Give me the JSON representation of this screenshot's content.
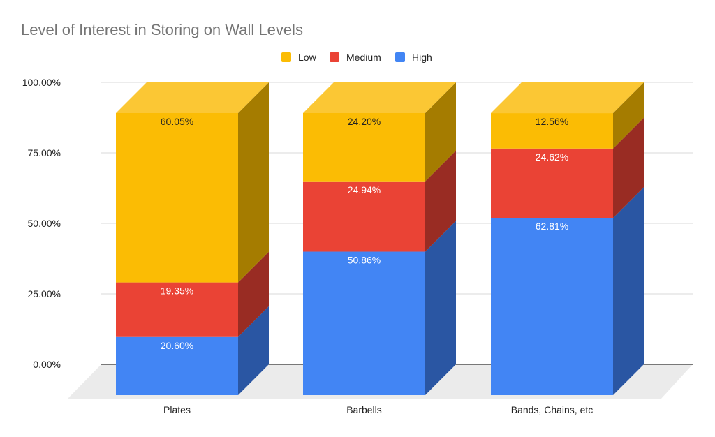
{
  "chart_data": {
    "type": "bar",
    "stacked": true,
    "three_d": true,
    "title": "Level of Interest in Storing on Wall Levels",
    "categories": [
      "Plates",
      "Barbells",
      "Bands, Chains, etc"
    ],
    "series": [
      {
        "key": "high",
        "name": "High",
        "values": [
          20.6,
          50.86,
          62.81
        ],
        "labels": [
          "20.60%",
          "50.86%",
          "62.81%"
        ]
      },
      {
        "key": "medium",
        "name": "Medium",
        "values": [
          19.35,
          24.94,
          24.62
        ],
        "labels": [
          "19.35%",
          "24.94%",
          "24.62%"
        ]
      },
      {
        "key": "low",
        "name": "Low",
        "values": [
          60.05,
          24.2,
          12.56
        ],
        "labels": [
          "60.05%",
          "24.20%",
          "12.56%"
        ]
      }
    ],
    "legend": [
      "Low",
      "Medium",
      "High"
    ],
    "legend_position": "top",
    "y_ticks": [
      "0.00%",
      "25.00%",
      "50.00%",
      "75.00%",
      "100.00%"
    ],
    "ylim": [
      0,
      100
    ],
    "grid": true
  },
  "colors": {
    "low": {
      "front": "#FBBC04",
      "side": "#A57C00",
      "top": "#FBC734",
      "label": "#222222"
    },
    "medium": {
      "front": "#EA4335",
      "side": "#992C23",
      "top": "#ED5F53",
      "label": "#ffffff"
    },
    "high": {
      "front": "#4285F4",
      "side": "#2A56A3",
      "top": "#5F97F5",
      "label": "#ffffff"
    },
    "floor": "#EBEBEB",
    "grid": "#D9D9D9",
    "axis": "#333333"
  }
}
